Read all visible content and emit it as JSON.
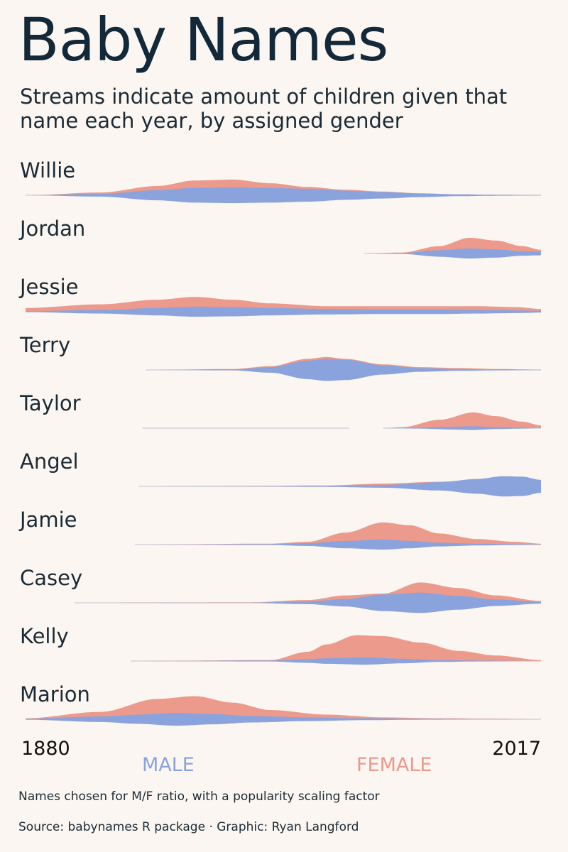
{
  "title": "Baby Names",
  "subtitle": "Streams indicate amount of children given that name each year, by assigned gender",
  "footnote": "Names chosen for M/F ratio, with a popularity scaling factor",
  "source": "Source: babynames R package · Graphic: Ryan Langford",
  "colors": {
    "male": "#8ba3dc",
    "female": "#ec9a8c",
    "zero_line": "#bcc3d4"
  },
  "chart_data": {
    "type": "area",
    "xlim": [
      1880,
      2017
    ],
    "x_start_label": "1880",
    "x_end_label": "2017",
    "legend": {
      "male": "MALE",
      "female": "FEMALE"
    },
    "series": [
      {
        "name": "Willie",
        "start": 1880,
        "male": [
          [
            1880,
            0
          ],
          [
            1900,
            3
          ],
          [
            1915,
            11
          ],
          [
            1925,
            16
          ],
          [
            1935,
            17
          ],
          [
            1945,
            16
          ],
          [
            1955,
            14
          ],
          [
            1965,
            10
          ],
          [
            1975,
            7
          ],
          [
            1985,
            4
          ],
          [
            1995,
            2
          ],
          [
            2005,
            1
          ],
          [
            2017,
            0.5
          ]
        ],
        "female": [
          [
            1880,
            0
          ],
          [
            1900,
            3
          ],
          [
            1915,
            10
          ],
          [
            1925,
            16
          ],
          [
            1935,
            17
          ],
          [
            1945,
            13
          ],
          [
            1955,
            9
          ],
          [
            1965,
            6
          ],
          [
            1975,
            4
          ],
          [
            1985,
            2
          ],
          [
            1995,
            1
          ],
          [
            2005,
            0.5
          ],
          [
            2017,
            0.3
          ]
        ]
      },
      {
        "name": "Jordan",
        "start": 1970,
        "male": [
          [
            1970,
            0
          ],
          [
            1980,
            1
          ],
          [
            1990,
            7
          ],
          [
            1998,
            11
          ],
          [
            2005,
            9
          ],
          [
            2012,
            5
          ],
          [
            2017,
            4
          ]
        ],
        "female": [
          [
            1970,
            0
          ],
          [
            1980,
            1
          ],
          [
            1990,
            8
          ],
          [
            1998,
            17
          ],
          [
            2005,
            14
          ],
          [
            2012,
            8
          ],
          [
            2017,
            4
          ]
        ]
      },
      {
        "name": "Jessie",
        "start": 1880,
        "male": [
          [
            1880,
            1
          ],
          [
            1900,
            4
          ],
          [
            1915,
            8
          ],
          [
            1925,
            11
          ],
          [
            1935,
            10
          ],
          [
            1945,
            8
          ],
          [
            1960,
            6
          ],
          [
            1975,
            5
          ],
          [
            1990,
            5
          ],
          [
            2000,
            4
          ],
          [
            2010,
            3
          ],
          [
            2017,
            2
          ]
        ],
        "female": [
          [
            1880,
            4
          ],
          [
            1900,
            8
          ],
          [
            1915,
            13
          ],
          [
            1925,
            16
          ],
          [
            1935,
            13
          ],
          [
            1945,
            9
          ],
          [
            1960,
            6
          ],
          [
            1975,
            6
          ],
          [
            1990,
            6
          ],
          [
            2000,
            6
          ],
          [
            2010,
            5
          ],
          [
            2017,
            3
          ]
        ]
      },
      {
        "name": "Terry",
        "start": 1912,
        "male": [
          [
            1912,
            0
          ],
          [
            1935,
            1
          ],
          [
            1945,
            6
          ],
          [
            1955,
            20
          ],
          [
            1960,
            24
          ],
          [
            1965,
            22
          ],
          [
            1975,
            10
          ],
          [
            1985,
            4
          ],
          [
            1995,
            2
          ],
          [
            2005,
            1
          ],
          [
            2017,
            0.5
          ]
        ],
        "female": [
          [
            1912,
            0
          ],
          [
            1935,
            1
          ],
          [
            1945,
            4
          ],
          [
            1955,
            12
          ],
          [
            1960,
            14
          ],
          [
            1965,
            12
          ],
          [
            1975,
            6
          ],
          [
            1985,
            3
          ],
          [
            1995,
            2
          ],
          [
            2005,
            1
          ],
          [
            2017,
            0.3
          ]
        ]
      },
      {
        "name": "Taylor",
        "start": 1911,
        "gap": [
          1966,
          1975
        ],
        "male": [
          [
            1911,
            0
          ],
          [
            1966,
            0
          ],
          [
            1975,
            0
          ],
          [
            1985,
            1
          ],
          [
            1993,
            3
          ],
          [
            1999,
            4
          ],
          [
            2005,
            2
          ],
          [
            2012,
            1
          ],
          [
            2017,
            0
          ]
        ],
        "female": [
          [
            1911,
            0
          ],
          [
            1966,
            0
          ],
          [
            1975,
            0
          ],
          [
            1980,
            1
          ],
          [
            1990,
            9
          ],
          [
            1999,
            17
          ],
          [
            2005,
            13
          ],
          [
            2012,
            7
          ],
          [
            2017,
            3
          ]
        ]
      },
      {
        "name": "Angel",
        "start": 1910,
        "male": [
          [
            1910,
            0
          ],
          [
            1940,
            0.5
          ],
          [
            1960,
            1
          ],
          [
            1975,
            3
          ],
          [
            1990,
            9
          ],
          [
            2000,
            16
          ],
          [
            2007,
            22
          ],
          [
            2012,
            21
          ],
          [
            2017,
            14
          ]
        ],
        "female": [
          [
            1910,
            0
          ],
          [
            1940,
            0.5
          ],
          [
            1960,
            1
          ],
          [
            1975,
            3
          ],
          [
            1990,
            5
          ],
          [
            2000,
            7
          ],
          [
            2007,
            8
          ],
          [
            2012,
            7
          ],
          [
            2017,
            5
          ]
        ]
      },
      {
        "name": "Jamie",
        "start": 1909,
        "male": [
          [
            1909,
            0
          ],
          [
            1945,
            1
          ],
          [
            1955,
            3
          ],
          [
            1965,
            8
          ],
          [
            1975,
            11
          ],
          [
            1982,
            8
          ],
          [
            1990,
            4
          ],
          [
            2000,
            2
          ],
          [
            2010,
            1
          ],
          [
            2017,
            0.5
          ]
        ],
        "female": [
          [
            1909,
            0
          ],
          [
            1945,
            1
          ],
          [
            1955,
            3
          ],
          [
            1965,
            13
          ],
          [
            1975,
            24
          ],
          [
            1982,
            21
          ],
          [
            1990,
            12
          ],
          [
            2000,
            6
          ],
          [
            2010,
            3
          ],
          [
            2017,
            1
          ]
        ]
      },
      {
        "name": "Casey",
        "start": 1893,
        "male": [
          [
            1893,
            0
          ],
          [
            1940,
            0.5
          ],
          [
            1955,
            3
          ],
          [
            1965,
            8
          ],
          [
            1975,
            18
          ],
          [
            1985,
            22
          ],
          [
            1995,
            15
          ],
          [
            2005,
            7
          ],
          [
            2017,
            2
          ]
        ],
        "female": [
          [
            1893,
            0
          ],
          [
            1940,
            0.5
          ],
          [
            1955,
            3
          ],
          [
            1965,
            8
          ],
          [
            1975,
            10
          ],
          [
            1985,
            22
          ],
          [
            1995,
            16
          ],
          [
            2005,
            8
          ],
          [
            2017,
            2
          ]
        ]
      },
      {
        "name": "Kelly",
        "start": 1908,
        "male": [
          [
            1908,
            0
          ],
          [
            1945,
            1
          ],
          [
            1955,
            4
          ],
          [
            1960,
            6
          ],
          [
            1970,
            8
          ],
          [
            1980,
            5
          ],
          [
            1990,
            2
          ],
          [
            2000,
            1
          ],
          [
            2017,
            0
          ]
        ],
        "female": [
          [
            1908,
            0
          ],
          [
            1945,
            1
          ],
          [
            1955,
            10
          ],
          [
            1960,
            18
          ],
          [
            1968,
            28
          ],
          [
            1975,
            27
          ],
          [
            1985,
            20
          ],
          [
            1995,
            11
          ],
          [
            2005,
            6
          ],
          [
            2017,
            1
          ]
        ]
      },
      {
        "name": "Marion",
        "start": 1880,
        "male": [
          [
            1880,
            1
          ],
          [
            1900,
            6
          ],
          [
            1910,
            10
          ],
          [
            1920,
            14
          ],
          [
            1930,
            11
          ],
          [
            1940,
            7
          ],
          [
            1955,
            4
          ],
          [
            1970,
            2
          ],
          [
            1985,
            1
          ],
          [
            2000,
            0.5
          ],
          [
            2017,
            0
          ]
        ],
        "female": [
          [
            1880,
            1
          ],
          [
            1900,
            8
          ],
          [
            1915,
            22
          ],
          [
            1925,
            25
          ],
          [
            1935,
            18
          ],
          [
            1945,
            10
          ],
          [
            1960,
            5
          ],
          [
            1975,
            2
          ],
          [
            1990,
            1
          ],
          [
            2005,
            0.5
          ],
          [
            2017,
            0
          ]
        ]
      }
    ]
  }
}
